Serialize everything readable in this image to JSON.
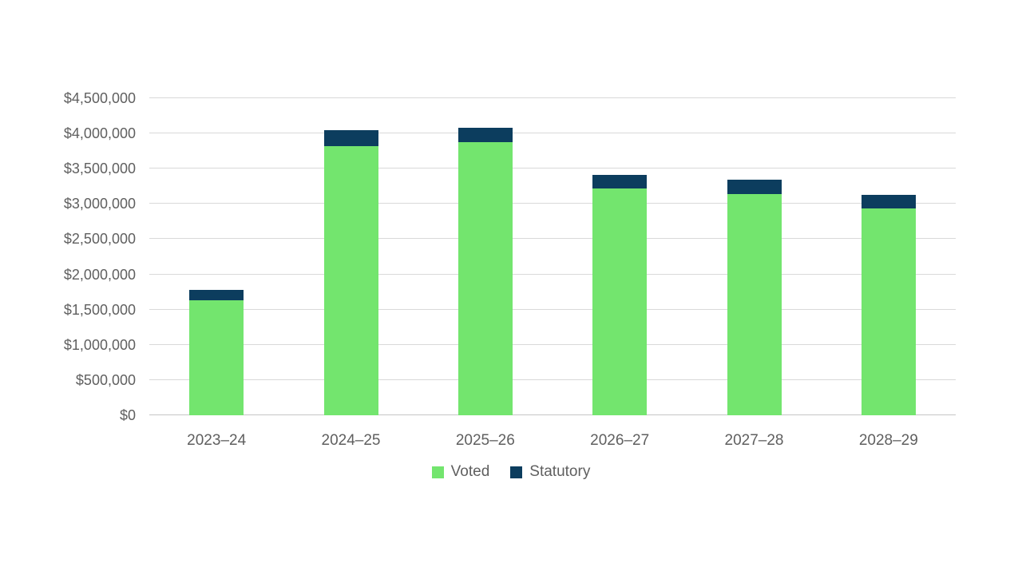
{
  "chart_data": {
    "type": "bar",
    "subtype": "stacked",
    "title": "",
    "xlabel": "",
    "ylabel": "",
    "categories": [
      "2023–24",
      "2024–25",
      "2025–26",
      "2026–27",
      "2027–28",
      "2028–29"
    ],
    "series": [
      {
        "name": "Voted",
        "color": "#73e56e",
        "values": [
          1630000,
          3820000,
          3880000,
          3220000,
          3135000,
          2935000
        ]
      },
      {
        "name": "Statutory",
        "color": "#0c3d5e",
        "values": [
          145000,
          230000,
          200000,
          195000,
          205000,
          190000
        ]
      }
    ],
    "ylim": [
      0,
      4500000
    ],
    "ytick_step": 500000,
    "ytick_labels": [
      "$0",
      "$500,000",
      "$1,000,000",
      "$1,500,000",
      "$2,000,000",
      "$2,500,000",
      "$3,000,000",
      "$3,500,000",
      "$4,000,000",
      "$4,500,000"
    ],
    "grid": true,
    "legend_position": "bottom-center",
    "colors": {
      "gridline": "#d9d9d9",
      "axis_line": "#c6c6c6",
      "tick_text": "#5f5f5f",
      "background": "#ffffff"
    }
  }
}
